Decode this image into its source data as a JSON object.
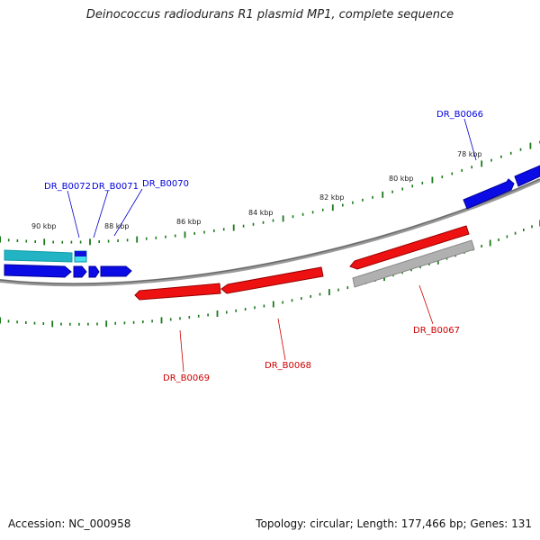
{
  "title": "Deinococcus radiodurans R1 plasmid MP1, complete sequence",
  "footer": {
    "accession": "Accession: NC_000958",
    "summary": "Topology: circular; Length: 177,466 bp; Genes: 131"
  },
  "scale_labels": [
    "78 kbp",
    "80 kbp",
    "82 kbp",
    "84 kbp",
    "86 kbp",
    "88 kbp",
    "90 kbp"
  ],
  "genes": [
    {
      "name": "DR_B0066",
      "strand": "forward",
      "color": "#0000dd"
    },
    {
      "name": "DR_B0067",
      "strand": "reverse",
      "color": "#cc0000"
    },
    {
      "name": "DR_B0068",
      "strand": "reverse",
      "color": "#cc0000"
    },
    {
      "name": "DR_B0069",
      "strand": "reverse",
      "color": "#cc0000"
    },
    {
      "name": "DR_B0070",
      "strand": "forward",
      "color": "#0000dd"
    },
    {
      "name": "DR_B0071",
      "strand": "forward",
      "color": "#0000dd"
    },
    {
      "name": "DR_B0072",
      "strand": "forward",
      "color": "#0000dd"
    }
  ],
  "colors": {
    "forward_cds": "#0000ee",
    "reverse_cds": "#ee0000",
    "other_feature": "#20b8c8",
    "pseudo": "#aaaaaa",
    "backbone": "#888888",
    "tick": "#1a7a1a"
  }
}
